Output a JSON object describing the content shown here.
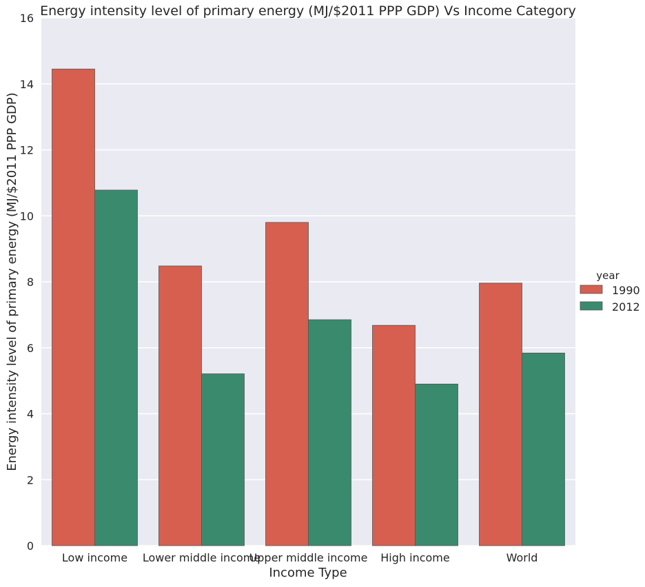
{
  "chart_data": {
    "type": "bar",
    "title": "Energy intensity level of primary energy (MJ/$2011 PPP GDP) Vs Income Category",
    "xlabel": "Income Type",
    "ylabel": "Energy intensity level of primary energy (MJ/$2011 PPP GDP)",
    "categories": [
      "Low income",
      "Lower middle income",
      "Upper middle income",
      "High income",
      "World"
    ],
    "series": [
      {
        "name": "1990",
        "values": [
          14.45,
          8.48,
          9.8,
          6.68,
          7.96
        ],
        "color": "#d65f4f"
      },
      {
        "name": "2012",
        "values": [
          10.78,
          5.21,
          6.85,
          4.9,
          5.84
        ],
        "color": "#3a8a6e"
      }
    ],
    "ylim": [
      0,
      16
    ],
    "yticks": [
      "0",
      "2",
      "4",
      "6",
      "8",
      "10",
      "12",
      "14",
      "16"
    ],
    "legend": {
      "title": "year",
      "position": "right"
    },
    "grid": true,
    "background": "#eaeaf2"
  }
}
